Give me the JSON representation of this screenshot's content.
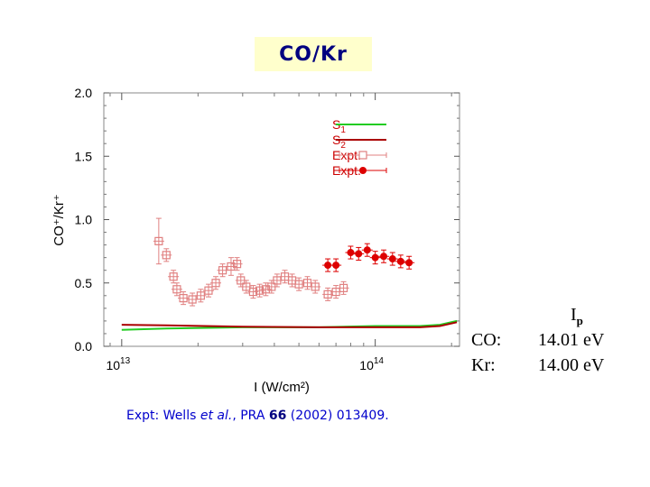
{
  "title": "CO/Kr",
  "citation": {
    "prefix": "Expt: Wells ",
    "et_al": "et al.",
    "journal": ", PRA ",
    "volume": "66",
    "suffix": " (2002) 013409."
  },
  "ionization_table": {
    "header_main": "I",
    "header_sub": "p",
    "rows": [
      {
        "gas": "CO:",
        "value": "14.01 eV"
      },
      {
        "gas": "Kr:",
        "value": "14.00 eV"
      }
    ]
  },
  "colors": {
    "title_bg": "#ffffcc",
    "title_text": "#000080",
    "s1": "#22cc22",
    "s2": "#aa0000",
    "expt_open": "#e08080",
    "expt_filled": "#dd0000",
    "legend_text": "#cc0000"
  },
  "chart_data": {
    "type": "scatter",
    "xlabel": "I (W/cm²)",
    "ylabel": "CO⁺/Kr⁺",
    "x_scale": "log",
    "xlim": [
      8500000000000.0,
      215000000000000.0
    ],
    "ylim": [
      0,
      2.0
    ],
    "yticks": [
      "0.0",
      "0.5",
      "1.0",
      "1.5",
      "2.0"
    ],
    "xticks": [
      {
        "value": 10000000000000.0,
        "base": "10",
        "exp": "13"
      },
      {
        "value": 100000000000000.0,
        "base": "10",
        "exp": "14"
      }
    ],
    "legend": {
      "position": "top-right",
      "entries": [
        {
          "label": "S",
          "sub": "1",
          "style": "line",
          "color": "#22cc22"
        },
        {
          "label": "S",
          "sub": "2",
          "style": "line",
          "color": "#aa0000"
        },
        {
          "label": "Expt.",
          "sub": "",
          "style": "open-square",
          "color": "#e08080"
        },
        {
          "label": "Expt.",
          "sub": "",
          "style": "filled-circle",
          "color": "#dd0000"
        }
      ]
    },
    "series": [
      {
        "name": "S1",
        "style": "line",
        "color": "#22cc22",
        "x": [
          10000000000000.0,
          15000000000000.0,
          30000000000000.0,
          60000000000000.0,
          100000000000000.0,
          150000000000000.0,
          180000000000000.0,
          210000000000000.0
        ],
        "y": [
          0.13,
          0.14,
          0.15,
          0.15,
          0.16,
          0.16,
          0.17,
          0.2
        ]
      },
      {
        "name": "S2",
        "style": "line",
        "color": "#aa0000",
        "x": [
          10000000000000.0,
          15000000000000.0,
          30000000000000.0,
          60000000000000.0,
          100000000000000.0,
          150000000000000.0,
          180000000000000.0,
          210000000000000.0
        ],
        "y": [
          0.17,
          0.165,
          0.155,
          0.15,
          0.15,
          0.15,
          0.16,
          0.19
        ]
      },
      {
        "name": "Expt. (open)",
        "style": "open-square",
        "color": "#e08080",
        "points": [
          {
            "x": 14000000000000.0,
            "y": 0.83,
            "err": 0.18
          },
          {
            "x": 15000000000000.0,
            "y": 0.72,
            "err": 0.05
          },
          {
            "x": 16000000000000.0,
            "y": 0.55,
            "err": 0.05
          },
          {
            "x": 16500000000000.0,
            "y": 0.45,
            "err": 0.05
          },
          {
            "x": 17500000000000.0,
            "y": 0.38,
            "err": 0.05
          },
          {
            "x": 19000000000000.0,
            "y": 0.37,
            "err": 0.05
          },
          {
            "x": 20500000000000.0,
            "y": 0.4,
            "err": 0.05
          },
          {
            "x": 22000000000000.0,
            "y": 0.44,
            "err": 0.05
          },
          {
            "x": 23500000000000.0,
            "y": 0.5,
            "err": 0.05
          },
          {
            "x": 25000000000000.0,
            "y": 0.6,
            "err": 0.05
          },
          {
            "x": 27000000000000.0,
            "y": 0.63,
            "err": 0.07
          },
          {
            "x": 28500000000000.0,
            "y": 0.65,
            "err": 0.05
          },
          {
            "x": 29500000000000.0,
            "y": 0.52,
            "err": 0.05
          },
          {
            "x": 31000000000000.0,
            "y": 0.47,
            "err": 0.05
          },
          {
            "x": 33000000000000.0,
            "y": 0.43,
            "err": 0.05
          },
          {
            "x": 35000000000000.0,
            "y": 0.44,
            "err": 0.05
          },
          {
            "x": 37000000000000.0,
            "y": 0.45,
            "err": 0.05
          },
          {
            "x": 39000000000000.0,
            "y": 0.47,
            "err": 0.05
          },
          {
            "x": 41000000000000.0,
            "y": 0.52,
            "err": 0.05
          },
          {
            "x": 44000000000000.0,
            "y": 0.55,
            "err": 0.05
          },
          {
            "x": 47000000000000.0,
            "y": 0.52,
            "err": 0.05
          },
          {
            "x": 50000000000000.0,
            "y": 0.49,
            "err": 0.05
          },
          {
            "x": 54000000000000.0,
            "y": 0.5,
            "err": 0.05
          },
          {
            "x": 58000000000000.0,
            "y": 0.47,
            "err": 0.05
          },
          {
            "x": 65000000000000.0,
            "y": 0.41,
            "err": 0.05
          },
          {
            "x": 70000000000000.0,
            "y": 0.43,
            "err": 0.05
          },
          {
            "x": 75000000000000.0,
            "y": 0.46,
            "err": 0.05
          }
        ]
      },
      {
        "name": "Expt. (filled)",
        "style": "filled-circle",
        "color": "#dd0000",
        "points": [
          {
            "x": 65000000000000.0,
            "y": 0.64,
            "err": 0.05
          },
          {
            "x": 70000000000000.0,
            "y": 0.64,
            "err": 0.05
          },
          {
            "x": 80000000000000.0,
            "y": 0.74,
            "err": 0.05
          },
          {
            "x": 86000000000000.0,
            "y": 0.73,
            "err": 0.05
          },
          {
            "x": 93000000000000.0,
            "y": 0.76,
            "err": 0.05
          },
          {
            "x": 100000000000000.0,
            "y": 0.7,
            "err": 0.05
          },
          {
            "x": 108000000000000.0,
            "y": 0.71,
            "err": 0.05
          },
          {
            "x": 117000000000000.0,
            "y": 0.69,
            "err": 0.05
          },
          {
            "x": 126000000000000.0,
            "y": 0.67,
            "err": 0.05
          },
          {
            "x": 136000000000000.0,
            "y": 0.66,
            "err": 0.05
          }
        ]
      }
    ]
  }
}
